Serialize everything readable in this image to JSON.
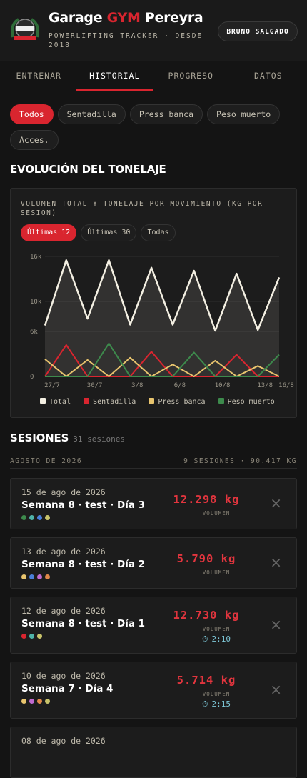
{
  "header": {
    "title_pre": "Garage ",
    "title_accent": "GYM",
    "title_post": " Pereyra",
    "subtitle": "POWERLIFTING TRACKER · DESDE 2018",
    "user": "BRUNO SALGADO"
  },
  "tabs": [
    "ENTRENAR",
    "HISTORIAL",
    "PROGRESO",
    "DATOS"
  ],
  "filters": [
    "Todos",
    "Sentadilla",
    "Press banca",
    "Peso muerto",
    "Acces."
  ],
  "section_title": "EVOLUCIÓN DEL TONELAJE",
  "chart_data": {
    "type": "line",
    "title": "VOLUMEN TOTAL Y TONELAJE POR MOVIMIENTO (KG POR SESIÓN)",
    "ranges": [
      "Últimas 12",
      "Últimas 30",
      "Todas"
    ],
    "categories": [
      "27/7",
      null,
      "30/7",
      null,
      "3/8",
      null,
      "6/8",
      null,
      "10/8",
      null,
      "13/8",
      "16/8"
    ],
    "series": [
      {
        "name": "Total",
        "color": "#f3efe2",
        "fill": true,
        "values": [
          6800,
          15500,
          7700,
          15500,
          6900,
          14500,
          6900,
          14100,
          6100,
          13700,
          6200,
          13200
        ]
      },
      {
        "name": "Sentadilla",
        "color": "#d9252f",
        "values": [
          0,
          4200,
          0,
          0,
          0,
          3300,
          0,
          0,
          0,
          2900,
          0,
          0
        ]
      },
      {
        "name": "Press banca",
        "color": "#e8c46e",
        "values": [
          2300,
          0,
          2200,
          0,
          2500,
          0,
          1600,
          0,
          2100,
          0,
          1400,
          0
        ]
      },
      {
        "name": "Peso muerto",
        "color": "#3d8a4c",
        "values": [
          0,
          0,
          0,
          4400,
          0,
          0,
          0,
          3200,
          0,
          0,
          0,
          2900
        ]
      }
    ],
    "ylim": [
      0,
      16000
    ],
    "yticks": [
      {
        "value": 0,
        "label": "0"
      },
      {
        "value": 6000,
        "label": "6k"
      },
      {
        "value": 10000,
        "label": "10k"
      },
      {
        "value": 16000,
        "label": "16k"
      }
    ],
    "grid": true
  },
  "sessions_title": "SESIONES",
  "sessions_count": "31 sesiones",
  "month": {
    "label": "AGOSTO DE 2026",
    "summary": "9 SESIONES · 90.417 KG"
  },
  "sessions": [
    {
      "date": "15 de ago de 2026",
      "name": "Semana 8 · test · Día 3",
      "volume": "12.298 kg",
      "volume_label": "VOLUMEN",
      "dots": [
        "#3d8a4c",
        "#4fb3a8",
        "#4a7fd8",
        "#c8c36a"
      ]
    },
    {
      "date": "13 de ago de 2026",
      "name": "Semana 8 · test · Día 2",
      "volume": "5.790 kg",
      "volume_label": "VOLUMEN",
      "dots": [
        "#e8c46e",
        "#4a7fd8",
        "#c06ad0",
        "#e0884a"
      ]
    },
    {
      "date": "12 de ago de 2026",
      "name": "Semana 8 · test · Día 1",
      "volume": "12.730 kg",
      "volume_label": "VOLUMEN",
      "duration": "2:10",
      "dots": [
        "#d9252f",
        "#4fb3a8",
        "#c8c36a"
      ]
    },
    {
      "date": "10 de ago de 2026",
      "name": "Semana 7 · Día 4",
      "volume": "5.714 kg",
      "volume_label": "VOLUMEN",
      "duration": "2:15",
      "dots": [
        "#e8c46e",
        "#c06ad0",
        "#e0884a",
        "#c8c36a"
      ]
    },
    {
      "date": "08 de ago de 2026"
    }
  ]
}
